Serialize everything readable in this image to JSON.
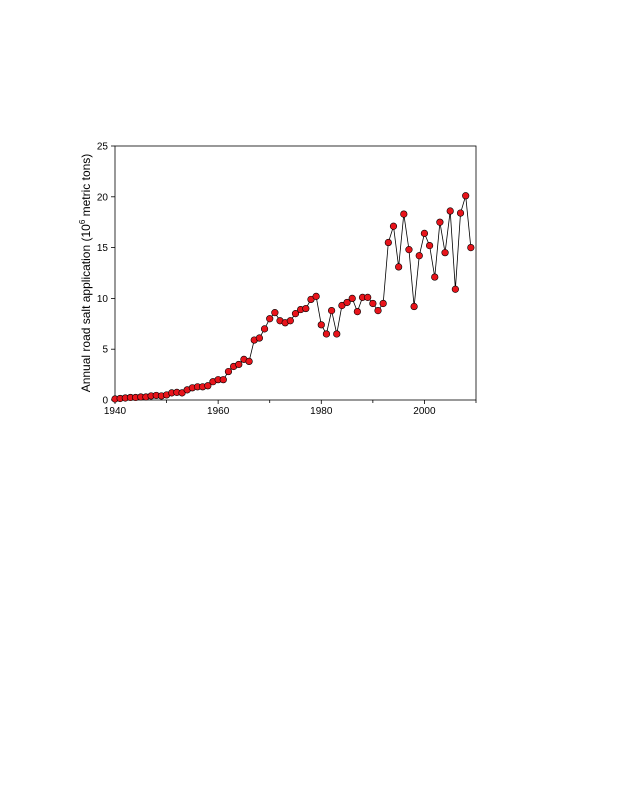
{
  "chart_data": {
    "type": "line",
    "title": "",
    "xlabel": "",
    "ylabel": "Annual road salt application (10",
    "ylabel_superscript": "6",
    "ylabel_suffix": " metric tons)",
    "xlim": [
      1940,
      2010
    ],
    "ylim": [
      0,
      25
    ],
    "xticks": [
      1940,
      1960,
      1980,
      2000
    ],
    "yticks": [
      0,
      5,
      10,
      15,
      20,
      25
    ],
    "grid": false,
    "legend": "none",
    "marker_color": "#e8141b",
    "line_color": "#000000",
    "series": [
      {
        "x": [
          1940,
          1941,
          1942,
          1943,
          1944,
          1945,
          1946,
          1947,
          1948,
          1949,
          1950,
          1951,
          1952,
          1953,
          1954,
          1955,
          1956,
          1957,
          1958,
          1959,
          1960,
          1961,
          1962,
          1963,
          1964,
          1965,
          1966,
          1967,
          1968,
          1969,
          1970,
          1971,
          1972,
          1973,
          1974,
          1975,
          1976,
          1977,
          1978,
          1979,
          1980,
          1981,
          1982,
          1983,
          1984,
          1985,
          1986,
          1987,
          1988,
          1989,
          1990,
          1991,
          1992,
          1993,
          1994,
          1995,
          1996,
          1997,
          1998,
          1999,
          2000,
          2001,
          2002,
          2003,
          2004,
          2005,
          2006,
          2007,
          2008,
          2009
        ],
        "y": [
          0.1,
          0.15,
          0.2,
          0.25,
          0.25,
          0.3,
          0.3,
          0.4,
          0.45,
          0.4,
          0.5,
          0.7,
          0.75,
          0.7,
          1.0,
          1.2,
          1.3,
          1.3,
          1.4,
          1.8,
          2.0,
          2.0,
          2.8,
          3.3,
          3.5,
          4.0,
          3.8,
          5.9,
          6.1,
          7.0,
          8.0,
          8.6,
          7.8,
          7.6,
          7.8,
          8.5,
          8.9,
          9.0,
          9.9,
          10.2,
          7.4,
          6.5,
          8.8,
          6.5,
          9.3,
          9.6,
          10.0,
          8.7,
          10.1,
          10.1,
          9.5,
          8.8,
          9.5,
          15.5,
          17.1,
          13.1,
          18.3,
          14.8,
          9.2,
          14.2,
          16.4,
          15.2,
          12.1,
          17.5,
          14.5,
          18.6,
          10.9,
          18.4,
          20.1,
          15.0
        ]
      }
    ]
  }
}
